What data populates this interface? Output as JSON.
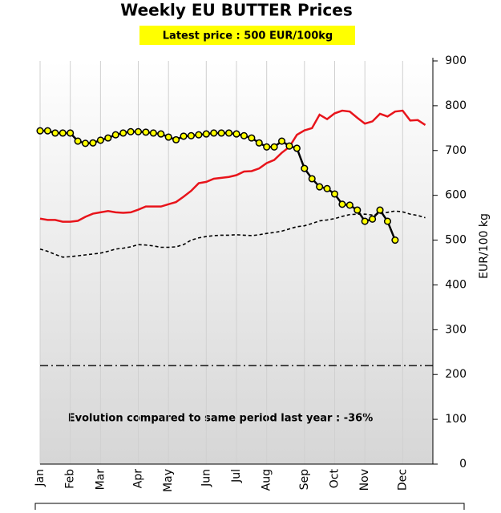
{
  "chart_data": {
    "type": "line",
    "title": "Weekly EU BUTTER Prices",
    "subtitle": "Latest price : 500 EUR/100kg",
    "annotation": "Evolution compared to same period last year : -36%",
    "y_label": "EUR/100 kg",
    "categories": [
      "Jan",
      null,
      null,
      null,
      "Feb",
      null,
      null,
      null,
      "Mar",
      null,
      null,
      null,
      null,
      "Apr",
      null,
      null,
      null,
      "May",
      null,
      null,
      null,
      null,
      "Jun",
      null,
      null,
      null,
      "Jul",
      null,
      null,
      null,
      "Aug",
      null,
      null,
      null,
      null,
      "Sep",
      null,
      null,
      null,
      "Oct",
      null,
      null,
      null,
      "Nov",
      null,
      null,
      null,
      null,
      "Dec",
      null,
      null,
      null
    ],
    "series": [
      {
        "color": "#000000",
        "style": "dashed",
        "values": [
          480,
          475,
          468,
          462,
          463,
          465,
          467,
          469,
          471,
          475,
          480,
          482,
          485,
          490,
          489,
          487,
          484,
          484,
          485,
          490,
          500,
          505,
          508,
          510,
          511,
          511,
          512,
          511,
          510,
          512,
          515,
          517,
          520,
          525,
          530,
          532,
          537,
          543,
          545,
          548,
          553,
          557,
          558,
          558,
          556,
          559,
          562,
          565,
          563,
          558,
          555,
          550
        ]
      },
      {
        "color": "#e8141b",
        "style": "solid",
        "values": [
          548,
          545,
          545,
          541,
          541,
          543,
          552,
          559,
          562,
          565,
          562,
          561,
          562,
          568,
          575,
          575,
          575,
          580,
          585,
          597,
          610,
          627,
          630,
          637,
          639,
          641,
          645,
          653,
          654,
          660,
          672,
          679,
          695,
          708,
          735,
          745,
          750,
          780,
          770,
          783,
          789,
          787,
          773,
          760,
          765,
          782,
          776,
          787,
          789,
          767,
          768,
          757
        ]
      },
      {
        "color": "#000000",
        "style": "solid",
        "marker": "#ffff00",
        "values": [
          744,
          744,
          739,
          739,
          739,
          721,
          716,
          717,
          723,
          728,
          735,
          739,
          742,
          742,
          741,
          739,
          737,
          730,
          724,
          732,
          733,
          735,
          737,
          739,
          739,
          739,
          737,
          733,
          728,
          717,
          708,
          708,
          721,
          710,
          705,
          660,
          637,
          619,
          615,
          603,
          580,
          578,
          567,
          542,
          547,
          567,
          542,
          500,
          null,
          null,
          null,
          null
        ]
      }
    ],
    "hline": 220,
    "ylim": [
      0,
      900
    ],
    "yticks": [
      0,
      100,
      200,
      300,
      400,
      500,
      600,
      700,
      800,
      900
    ],
    "grid": true
  }
}
